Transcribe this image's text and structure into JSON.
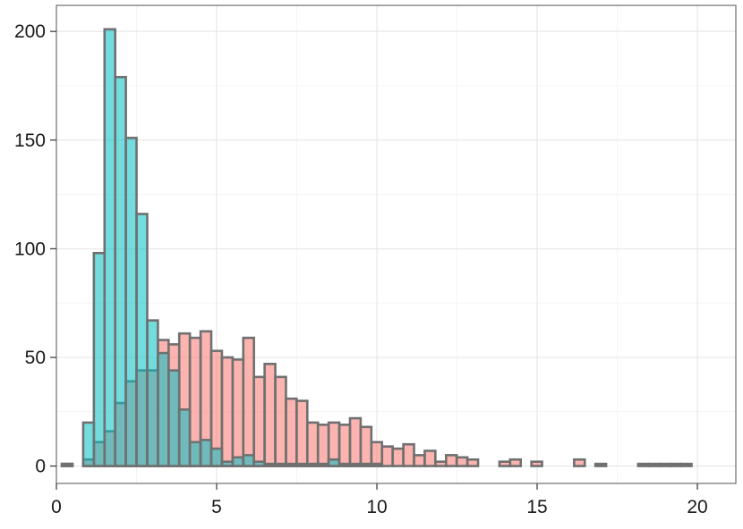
{
  "chart_data": {
    "type": "bar",
    "subtype": "overlaid-histogram",
    "bin_width": 0.333,
    "x_start": 0.17,
    "xlim": [
      0,
      21.2
    ],
    "ylim": [
      -8,
      212
    ],
    "x_ticks": [
      0,
      5,
      10,
      15,
      20
    ],
    "x_tick_labels": [
      "0",
      "5",
      "10",
      "15",
      "20"
    ],
    "y_ticks": [
      0,
      50,
      100,
      150,
      200
    ],
    "y_tick_labels": [
      "0",
      "50",
      "100",
      "150",
      "200"
    ],
    "grid": true,
    "legend": "none",
    "series": [
      {
        "color": "#F8766D",
        "values": [
          1,
          0,
          3,
          11,
          16,
          29,
          39,
          44,
          44,
          58,
          56,
          61,
          59,
          62,
          53,
          50,
          49,
          59,
          41,
          47,
          41,
          31,
          30,
          20,
          19,
          20,
          19,
          22,
          18,
          11,
          9,
          8,
          10,
          5,
          7,
          2,
          5,
          4,
          3,
          0,
          0,
          2,
          3,
          0,
          2,
          0,
          0,
          0,
          3,
          0,
          1,
          0,
          0,
          0,
          1,
          1,
          1,
          1,
          1,
          0,
          0,
          0,
          0
        ]
      },
      {
        "color": "#00BFC4",
        "values": [
          1,
          0,
          20,
          98,
          201,
          179,
          151,
          116,
          67,
          52,
          44,
          26,
          11,
          12,
          8,
          2,
          4,
          5,
          2,
          1,
          1,
          1,
          1,
          1,
          1,
          3,
          1,
          1,
          1,
          1,
          0,
          0,
          0,
          0,
          0,
          0,
          0,
          0,
          0,
          0,
          0,
          0,
          0,
          0,
          0,
          0,
          0,
          0,
          0,
          0,
          0,
          0,
          0,
          0,
          0,
          0,
          0,
          0,
          0,
          0,
          0,
          0,
          0
        ]
      }
    ]
  }
}
